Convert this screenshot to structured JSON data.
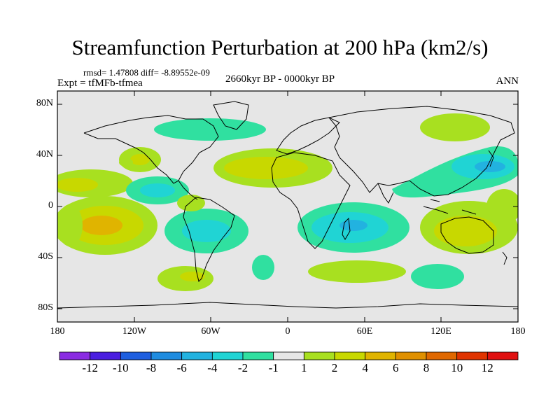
{
  "title": "Streamfunction Perturbation at 200 hPa (km2/s)",
  "stats": "rmsd= 1.47808 diff= -8.89552e-09",
  "experiment": "Expt = tfMFb-tfmea",
  "period": "2660kyr BP - 0000kyr BP",
  "season": "ANN",
  "lat_labels": [
    "80N",
    "40N",
    "0",
    "40S",
    "80S"
  ],
  "lon_labels": [
    "180",
    "120W",
    "60W",
    "0",
    "60E",
    "120E",
    "180"
  ],
  "colorbar": {
    "levels": [
      "-12",
      "-10",
      "-8",
      "-6",
      "-4",
      "-2",
      "-1",
      "1",
      "2",
      "4",
      "6",
      "8",
      "10",
      "12"
    ],
    "colors": [
      "#8a2be2",
      "#4a1ee0",
      "#1f5fe0",
      "#1f8ce0",
      "#22b2e0",
      "#20d4d4",
      "#30e0a0",
      "#e6e6e6",
      "#a8e020",
      "#c8d800",
      "#e0b400",
      "#e09000",
      "#e06800",
      "#e03400",
      "#e01010"
    ]
  },
  "field_blobs": [
    {
      "lon": -140,
      "lat": -15,
      "level": 3,
      "size": [
        55,
        25
      ]
    },
    {
      "lon": -140,
      "lat": -15,
      "level": 4,
      "size": [
        20,
        8
      ]
    },
    {
      "lon": 155,
      "lat": 32,
      "level": -3,
      "size": [
        40,
        16
      ]
    },
    {
      "lon": 45,
      "lat": -18,
      "level": -3,
      "size": [
        35,
        14
      ]
    },
    {
      "lon": 30,
      "lat": 30,
      "level": 2,
      "size": [
        60,
        18
      ]
    },
    {
      "lon": -80,
      "lat": -25,
      "level": -2,
      "size": [
        30,
        20
      ]
    },
    {
      "lon": 130,
      "lat": -20,
      "level": 2,
      "size": [
        40,
        25
      ]
    }
  ]
}
